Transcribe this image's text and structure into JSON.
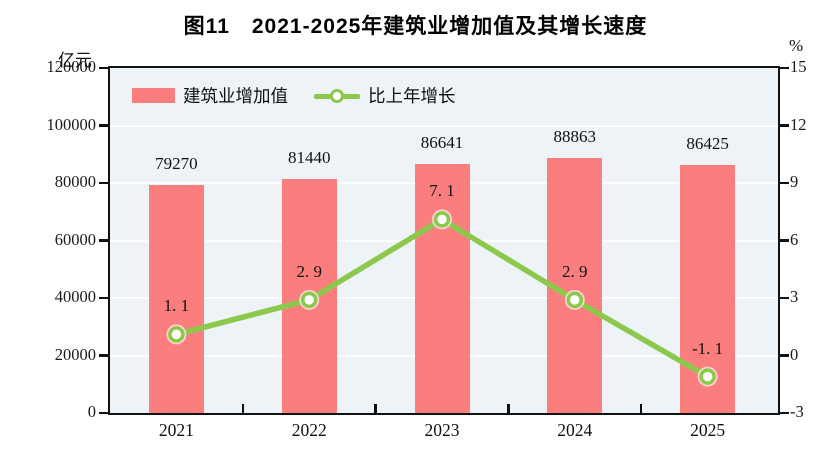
{
  "title": "图11　2021-2025年建筑业增加值及其增长速度",
  "chart_data": {
    "type": "combo",
    "categories": [
      "2021",
      "2022",
      "2023",
      "2024",
      "2025"
    ],
    "series": [
      {
        "name": "建筑业增加值",
        "type": "bar",
        "axis": "left",
        "color": "#FB7E7E",
        "values": [
          79270,
          81440,
          86641,
          88863,
          86425
        ],
        "labels": [
          "79270",
          "81440",
          "86641",
          "88863",
          "86425"
        ]
      },
      {
        "name": "比上年增长",
        "type": "line",
        "axis": "right",
        "color": "#8CC84B",
        "marker": "circle-white-fill",
        "values": [
          1.1,
          2.9,
          7.1,
          2.9,
          -1.1
        ],
        "labels": [
          "1. 1",
          "2. 9",
          "7. 1",
          "2. 9",
          "-1. 1"
        ]
      }
    ],
    "left_axis": {
      "unit": "亿元",
      "min": 0,
      "max": 120000,
      "step": 20000,
      "ticks": [
        "0",
        "20000",
        "40000",
        "60000",
        "80000",
        "100000",
        "120000"
      ]
    },
    "right_axis": {
      "unit": "%",
      "min": -3,
      "max": 15,
      "step": 3,
      "ticks": [
        "-3",
        "0",
        "3",
        "6",
        "9",
        "12",
        "15"
      ]
    },
    "legend_position": "top-left-inside",
    "grid": "horizontal-white",
    "plot_background": "#EDF3F7",
    "gridline_color": "#FFFFFF"
  }
}
